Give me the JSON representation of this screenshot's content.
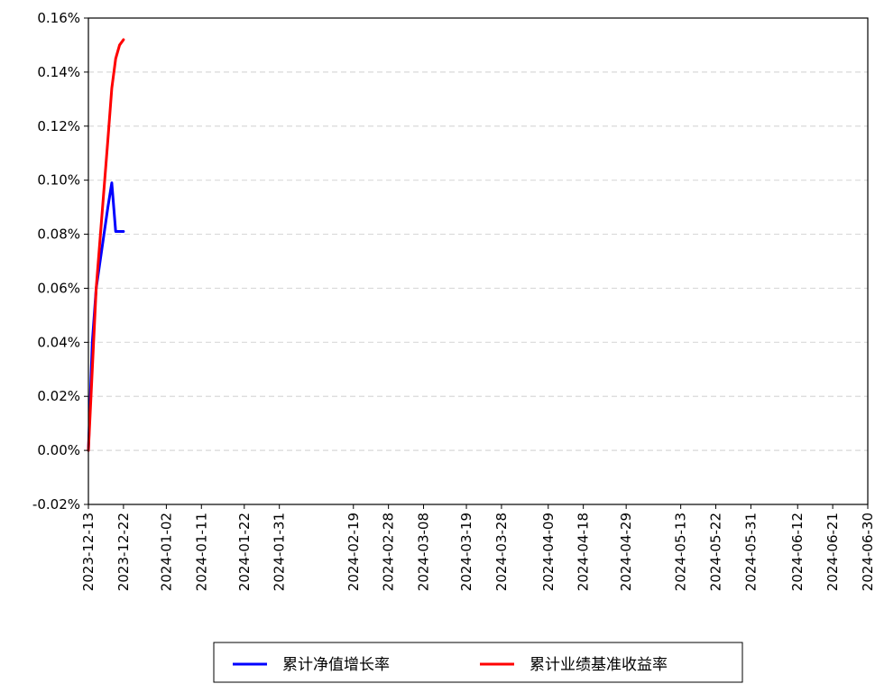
{
  "chart_data": {
    "type": "line",
    "title": "",
    "xlabel": "",
    "ylabel": "",
    "x_ticks": [
      "2023-12-13",
      "2023-12-22",
      "2024-01-02",
      "2024-01-11",
      "2024-01-22",
      "2024-01-31",
      "2024-02-19",
      "2024-02-28",
      "2024-03-08",
      "2024-03-19",
      "2024-03-28",
      "2024-04-09",
      "2024-04-18",
      "2024-04-29",
      "2024-05-13",
      "2024-05-22",
      "2024-05-31",
      "2024-06-12",
      "2024-06-21",
      "2024-06-30"
    ],
    "y_ticks": [
      "-0.02%",
      "0.00%",
      "0.02%",
      "0.04%",
      "0.06%",
      "0.08%",
      "0.10%",
      "0.12%",
      "0.14%",
      "0.16%"
    ],
    "ylim": [
      -0.02,
      0.16
    ],
    "y_unit": "%",
    "grid": "horizontal-dashed",
    "legend_position": "bottom-center",
    "series": [
      {
        "name": "累计净值增长率",
        "color": "#0000ff",
        "x": [
          "2023-12-13",
          "2023-12-14",
          "2023-12-15",
          "2023-12-18",
          "2023-12-19",
          "2023-12-20",
          "2023-12-21",
          "2023-12-22"
        ],
        "values": [
          0.0,
          0.04,
          0.06,
          0.09,
          0.099,
          0.081,
          0.081,
          0.081
        ]
      },
      {
        "name": "累计业绩基准收益率",
        "color": "#ff0000",
        "x": [
          "2023-12-13",
          "2023-12-14",
          "2023-12-15",
          "2023-12-18",
          "2023-12-19",
          "2023-12-20",
          "2023-12-21",
          "2023-12-22"
        ],
        "values": [
          0.0,
          0.03,
          0.06,
          0.115,
          0.134,
          0.145,
          0.15,
          0.152
        ]
      }
    ]
  }
}
